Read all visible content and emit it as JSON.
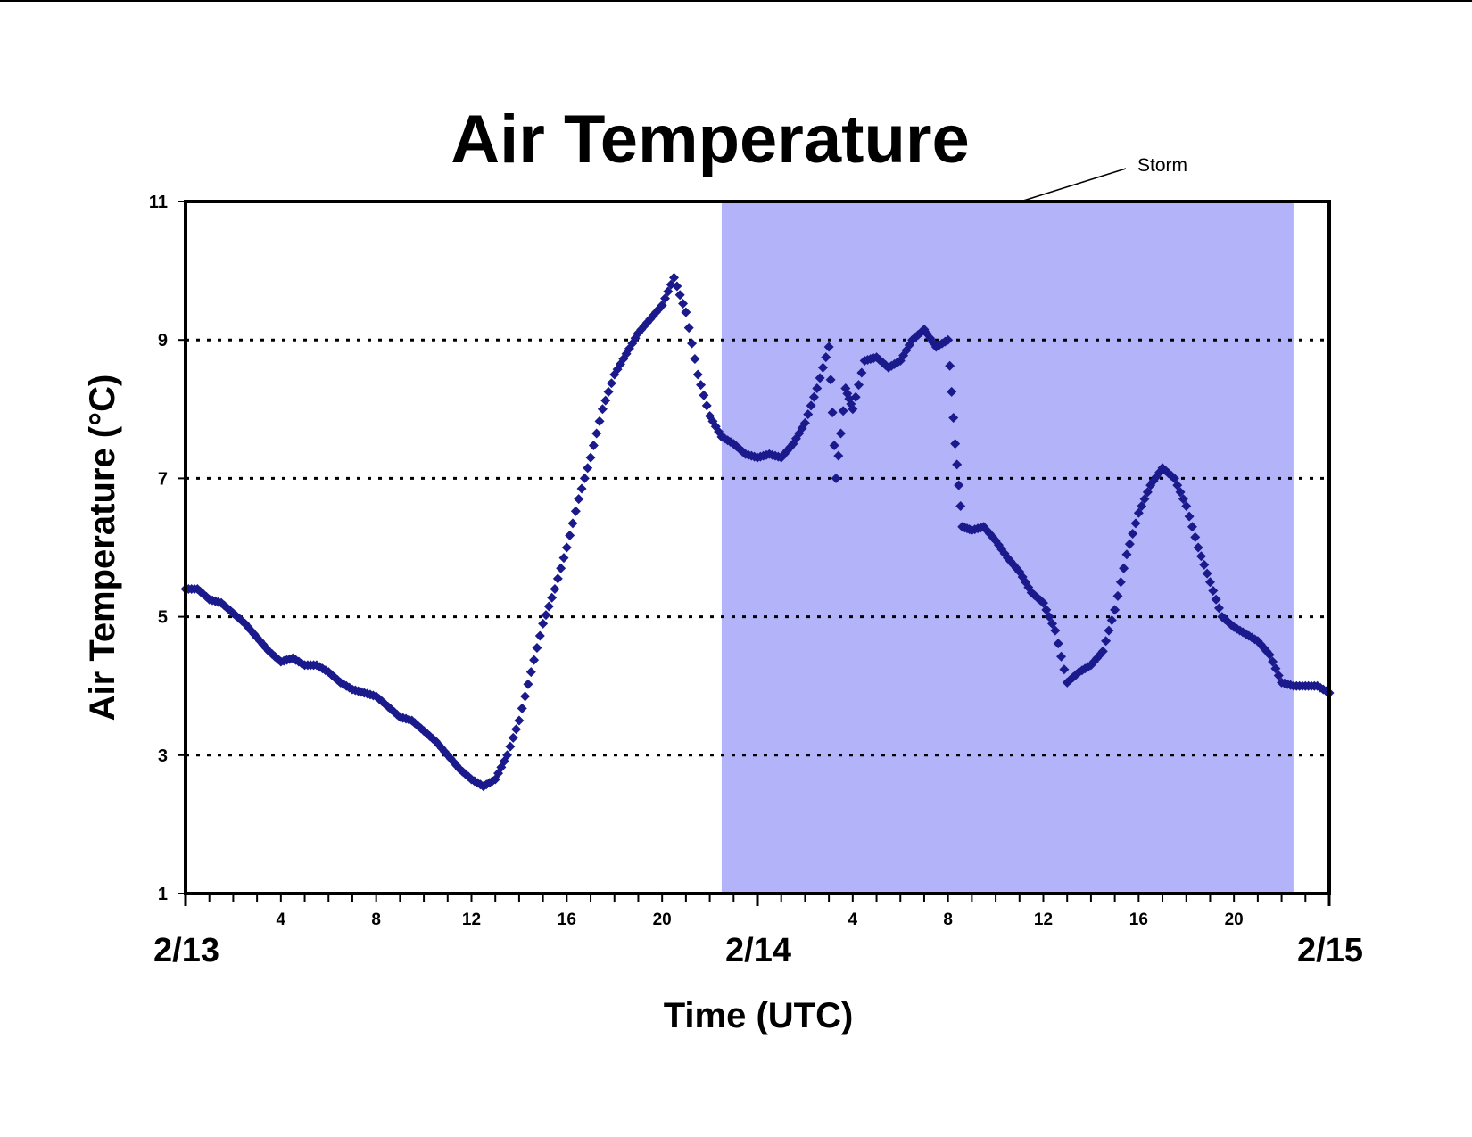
{
  "chart_data": {
    "type": "scatter",
    "title": "Air Temperature",
    "xlabel": "Time (UTC)",
    "ylabel": "Air Temperature (°C)",
    "x_unit": "hours from 2/13 00:00 UTC",
    "xlim": [
      0,
      48
    ],
    "ylim": [
      1,
      11
    ],
    "yticks": [
      1,
      3,
      5,
      7,
      9,
      11
    ],
    "grid_y": [
      3,
      5,
      7,
      9
    ],
    "hour_tick_labels": [
      "4",
      "8",
      "12",
      "16",
      "20",
      "4",
      "8",
      "12",
      "16",
      "20"
    ],
    "hour_tick_label_positions": [
      4,
      8,
      12,
      16,
      20,
      28,
      32,
      36,
      40,
      44
    ],
    "date_labels": [
      {
        "label": "2/13",
        "x": 0
      },
      {
        "label": "2/14",
        "x": 24
      },
      {
        "label": "2/15",
        "x": 48
      }
    ],
    "shaded_region": {
      "label": "Storm",
      "x_start": 22.5,
      "x_end": 46.5,
      "color": "#b3b3fa"
    },
    "marker_color": "#1a1a8c",
    "series": [
      {
        "points": [
          [
            0.0,
            5.4
          ],
          [
            0.5,
            5.4
          ],
          [
            1.0,
            5.25
          ],
          [
            1.5,
            5.2
          ],
          [
            2.0,
            5.05
          ],
          [
            2.5,
            4.9
          ],
          [
            3.0,
            4.7
          ],
          [
            3.5,
            4.5
          ],
          [
            4.0,
            4.35
          ],
          [
            4.5,
            4.4
          ],
          [
            5.0,
            4.3
          ],
          [
            5.5,
            4.3
          ],
          [
            6.0,
            4.2
          ],
          [
            6.5,
            4.05
          ],
          [
            7.0,
            3.95
          ],
          [
            7.5,
            3.9
          ],
          [
            8.0,
            3.85
          ],
          [
            8.5,
            3.7
          ],
          [
            9.0,
            3.55
          ],
          [
            9.5,
            3.5
          ],
          [
            10.0,
            3.35
          ],
          [
            10.5,
            3.2
          ],
          [
            11.0,
            3.0
          ],
          [
            11.5,
            2.8
          ],
          [
            12.0,
            2.65
          ],
          [
            12.5,
            2.55
          ],
          [
            13.0,
            2.65
          ],
          [
            13.5,
            3.0
          ],
          [
            14.0,
            3.5
          ],
          [
            14.5,
            4.2
          ],
          [
            15.0,
            4.9
          ],
          [
            15.5,
            5.4
          ],
          [
            16.0,
            6.0
          ],
          [
            16.5,
            6.7
          ],
          [
            17.0,
            7.3
          ],
          [
            17.5,
            8.0
          ],
          [
            18.0,
            8.5
          ],
          [
            18.5,
            8.8
          ],
          [
            19.0,
            9.1
          ],
          [
            19.5,
            9.3
          ],
          [
            20.0,
            9.5
          ],
          [
            20.5,
            9.9
          ],
          [
            21.0,
            9.4
          ],
          [
            21.5,
            8.5
          ],
          [
            22.0,
            7.9
          ],
          [
            22.5,
            7.6
          ],
          [
            23.0,
            7.5
          ],
          [
            23.5,
            7.35
          ],
          [
            24.0,
            7.3
          ],
          [
            24.5,
            7.35
          ],
          [
            25.0,
            7.3
          ],
          [
            25.5,
            7.5
          ],
          [
            26.0,
            7.8
          ],
          [
            26.5,
            8.3
          ],
          [
            27.0,
            8.9
          ],
          [
            27.3,
            7.0
          ],
          [
            27.7,
            8.3
          ],
          [
            28.0,
            8.0
          ],
          [
            28.5,
            8.7
          ],
          [
            29.0,
            8.75
          ],
          [
            29.5,
            8.6
          ],
          [
            30.0,
            8.7
          ],
          [
            30.5,
            9.0
          ],
          [
            31.0,
            9.15
          ],
          [
            31.5,
            8.9
          ],
          [
            32.0,
            9.0
          ],
          [
            32.3,
            7.5
          ],
          [
            32.6,
            6.3
          ],
          [
            33.0,
            6.25
          ],
          [
            33.5,
            6.3
          ],
          [
            34.0,
            6.1
          ],
          [
            34.5,
            5.85
          ],
          [
            35.0,
            5.65
          ],
          [
            35.5,
            5.35
          ],
          [
            36.0,
            5.2
          ],
          [
            36.5,
            4.8
          ],
          [
            37.0,
            4.05
          ],
          [
            37.5,
            4.2
          ],
          [
            38.0,
            4.3
          ],
          [
            38.5,
            4.5
          ],
          [
            39.0,
            5.1
          ],
          [
            39.5,
            5.9
          ],
          [
            40.0,
            6.5
          ],
          [
            40.5,
            6.9
          ],
          [
            41.0,
            7.15
          ],
          [
            41.5,
            7.0
          ],
          [
            42.0,
            6.6
          ],
          [
            42.5,
            6.0
          ],
          [
            43.0,
            5.5
          ],
          [
            43.5,
            5.0
          ],
          [
            44.0,
            4.85
          ],
          [
            44.5,
            4.75
          ],
          [
            45.0,
            4.65
          ],
          [
            45.5,
            4.45
          ],
          [
            46.0,
            4.05
          ],
          [
            46.5,
            4.0
          ],
          [
            47.0,
            4.0
          ],
          [
            47.5,
            4.0
          ],
          [
            48.0,
            3.9
          ]
        ]
      }
    ]
  }
}
